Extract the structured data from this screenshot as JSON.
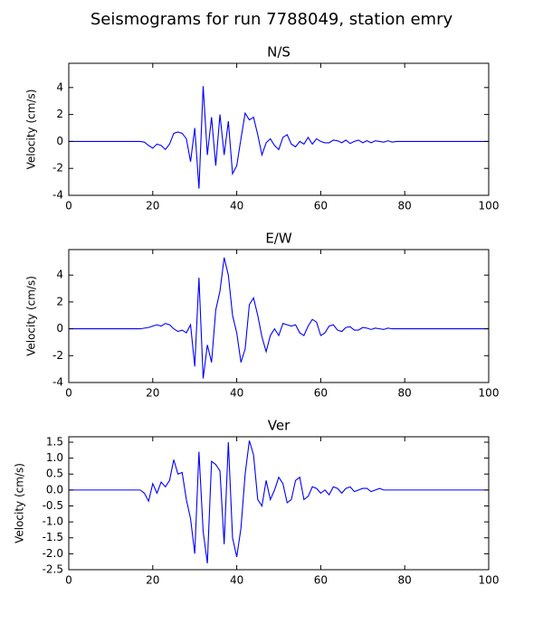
{
  "title": "Seismograms for run 7788049, station emry",
  "chart_data": [
    {
      "type": "line",
      "title": "N/S",
      "ylabel": "Velocity (cm/s)",
      "x": [
        0,
        1,
        2,
        3,
        4,
        5,
        6,
        7,
        8,
        9,
        10,
        11,
        12,
        13,
        14,
        15,
        16,
        17,
        18,
        19,
        20,
        21,
        22,
        23,
        24,
        25,
        26,
        27,
        28,
        29,
        30,
        31,
        32,
        33,
        34,
        35,
        36,
        37,
        38,
        39,
        40,
        41,
        42,
        43,
        44,
        45,
        46,
        47,
        48,
        49,
        50,
        51,
        52,
        53,
        54,
        55,
        56,
        57,
        58,
        59,
        60,
        61,
        62,
        63,
        64,
        65,
        66,
        67,
        68,
        69,
        70,
        71,
        72,
        73,
        74,
        75,
        76,
        77,
        78,
        79,
        80,
        81,
        82,
        83,
        84,
        85,
        86,
        87,
        88,
        89,
        90,
        91,
        92,
        93,
        94,
        95,
        96,
        97,
        98,
        99,
        100
      ],
      "series": [
        {
          "color": "#0000ff",
          "values": [
            0,
            0,
            0,
            0,
            0,
            0,
            0,
            0,
            0,
            0,
            0,
            0,
            0,
            0,
            0,
            0,
            0,
            0,
            -0.05,
            -0.3,
            -0.5,
            -0.2,
            -0.3,
            -0.6,
            -0.2,
            0.6,
            0.7,
            0.6,
            0.2,
            -1.5,
            1.0,
            -3.5,
            4.1,
            -1.0,
            1.8,
            -1.8,
            2.0,
            -1.0,
            1.5,
            -2.4,
            -1.8,
            0.2,
            2.1,
            1.6,
            1.8,
            0.5,
            -1.0,
            -0.1,
            0.2,
            -0.3,
            -0.6,
            0.3,
            0.5,
            -0.2,
            -0.4,
            0,
            -0.2,
            0.3,
            -0.2,
            0.2,
            0,
            -0.1,
            -0.1,
            0.1,
            0.05,
            -0.1,
            0.1,
            -0.15,
            0,
            0.1,
            -0.1,
            0.05,
            -0.1,
            0.05,
            0,
            -0.05,
            0.05,
            -0.05,
            0,
            0,
            0,
            0,
            0,
            0,
            0,
            0,
            0,
            0,
            0,
            0,
            0,
            0,
            0,
            0,
            0,
            0,
            0,
            0,
            0,
            0,
            0
          ]
        }
      ],
      "xlim": [
        0,
        100
      ],
      "xticks": [
        0,
        20,
        40,
        60,
        80,
        100
      ],
      "ylim": [
        -4,
        5.8
      ],
      "yticks": [
        -4,
        -2,
        0,
        2,
        4
      ]
    },
    {
      "type": "line",
      "title": "E/W",
      "ylabel": "Velocity (cm/s)",
      "x": [
        0,
        1,
        2,
        3,
        4,
        5,
        6,
        7,
        8,
        9,
        10,
        11,
        12,
        13,
        14,
        15,
        16,
        17,
        18,
        19,
        20,
        21,
        22,
        23,
        24,
        25,
        26,
        27,
        28,
        29,
        30,
        31,
        32,
        33,
        34,
        35,
        36,
        37,
        38,
        39,
        40,
        41,
        42,
        43,
        44,
        45,
        46,
        47,
        48,
        49,
        50,
        51,
        52,
        53,
        54,
        55,
        56,
        57,
        58,
        59,
        60,
        61,
        62,
        63,
        64,
        65,
        66,
        67,
        68,
        69,
        70,
        71,
        72,
        73,
        74,
        75,
        76,
        77,
        78,
        79,
        80,
        81,
        82,
        83,
        84,
        85,
        86,
        87,
        88,
        89,
        90,
        91,
        92,
        93,
        94,
        95,
        96,
        97,
        98,
        99,
        100
      ],
      "series": [
        {
          "color": "#0000ff",
          "values": [
            0,
            0,
            0,
            0,
            0,
            0,
            0,
            0,
            0,
            0,
            0,
            0,
            0,
            0,
            0,
            0,
            0,
            0,
            0.05,
            0.1,
            0.2,
            0.3,
            0.2,
            0.4,
            0.3,
            0,
            -0.2,
            -0.1,
            -0.3,
            0.3,
            -2.8,
            3.8,
            -3.7,
            -1.2,
            -2.5,
            1.4,
            2.8,
            5.3,
            4.0,
            1.0,
            -0.3,
            -2.5,
            -1.5,
            1.8,
            2.3,
            1.0,
            -0.6,
            -1.7,
            -0.5,
            0,
            -0.5,
            0.4,
            0.3,
            0.2,
            0.3,
            -0.3,
            -0.5,
            0.2,
            0.7,
            0.5,
            -0.5,
            -0.3,
            0.2,
            0.3,
            -0.1,
            -0.2,
            0.1,
            0.15,
            -0.1,
            -0.1,
            0.1,
            0.05,
            -0.05,
            0.05,
            0,
            -0.05,
            0.05,
            0,
            0,
            0,
            0,
            0,
            0,
            0,
            0,
            0,
            0,
            0,
            0,
            0,
            0,
            0,
            0,
            0,
            0,
            0,
            0,
            0,
            0,
            0,
            0
          ]
        }
      ],
      "xlim": [
        0,
        100
      ],
      "xticks": [
        0,
        20,
        40,
        60,
        80,
        100
      ],
      "ylim": [
        -4,
        5.9
      ],
      "yticks": [
        -4,
        -2,
        0,
        2,
        4
      ]
    },
    {
      "type": "line",
      "title": "Ver",
      "ylabel": "Velocity (cm/s)",
      "x": [
        0,
        1,
        2,
        3,
        4,
        5,
        6,
        7,
        8,
        9,
        10,
        11,
        12,
        13,
        14,
        15,
        16,
        17,
        18,
        19,
        20,
        21,
        22,
        23,
        24,
        25,
        26,
        27,
        28,
        29,
        30,
        31,
        32,
        33,
        34,
        35,
        36,
        37,
        38,
        39,
        40,
        41,
        42,
        43,
        44,
        45,
        46,
        47,
        48,
        49,
        50,
        51,
        52,
        53,
        54,
        55,
        56,
        57,
        58,
        59,
        60,
        61,
        62,
        63,
        64,
        65,
        66,
        67,
        68,
        69,
        70,
        71,
        72,
        73,
        74,
        75,
        76,
        77,
        78,
        79,
        80,
        81,
        82,
        83,
        84,
        85,
        86,
        87,
        88,
        89,
        90,
        91,
        92,
        93,
        94,
        95,
        96,
        97,
        98,
        99,
        100
      ],
      "series": [
        {
          "color": "#0000ff",
          "values": [
            0,
            0,
            0,
            0,
            0,
            0,
            0,
            0,
            0,
            0,
            0,
            0,
            0,
            0,
            0,
            0,
            0,
            0,
            -0.1,
            -0.35,
            0.2,
            -0.1,
            0.25,
            0.1,
            0.3,
            0.95,
            0.5,
            0.55,
            -0.3,
            -0.9,
            -2.0,
            1.2,
            -1.3,
            -2.3,
            0.9,
            0.8,
            0.6,
            -1.7,
            1.5,
            -1.5,
            -2.1,
            -1.2,
            0.5,
            1.55,
            1.1,
            -0.3,
            -0.5,
            0.3,
            -0.3,
            0,
            0.4,
            0.2,
            -0.4,
            -0.3,
            0.3,
            0.4,
            -0.3,
            -0.2,
            0.1,
            0.05,
            -0.1,
            0,
            -0.15,
            0.1,
            0.05,
            -0.1,
            0.05,
            0.1,
            -0.05,
            0,
            0.05,
            0.05,
            -0.05,
            0,
            0.05,
            0,
            0,
            0,
            0,
            0,
            0,
            0,
            0,
            0,
            0,
            0,
            0,
            0,
            0,
            0,
            0,
            0,
            0,
            0,
            0,
            0,
            0,
            0,
            0,
            0,
            0
          ]
        }
      ],
      "xlim": [
        0,
        100
      ],
      "xticks": [
        0,
        20,
        40,
        60,
        80,
        100
      ],
      "ylim": [
        -2.5,
        1.67
      ],
      "yticks": [
        -2.5,
        {
          "value": -2.0,
          "label": "-2.0"
        },
        -1.5,
        {
          "value": -1.0,
          "label": "-1.0"
        },
        -0.5,
        {
          "value": 0,
          "label": "0.0"
        },
        0.5,
        {
          "value": 1.0,
          "label": "1.0"
        },
        1.5
      ]
    }
  ]
}
